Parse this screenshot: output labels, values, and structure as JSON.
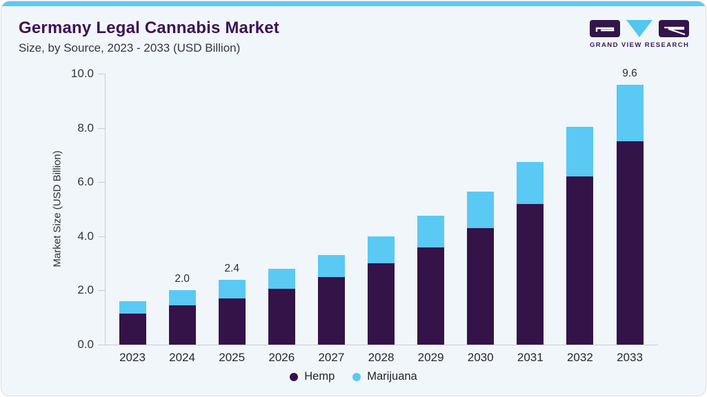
{
  "header": {
    "title": "Germany Legal Cannabis Market",
    "subtitle": "Size, by Source, 2023 - 2033 (USD Billion)"
  },
  "logo": {
    "brand": "GRAND VIEW RESEARCH"
  },
  "colors": {
    "hemp": "#331348",
    "marijuana": "#5ac9f3",
    "accent_bar": "#5bc9f5",
    "logo_purple": "#32164a",
    "logo_blue": "#53c6f0",
    "title_text": "#3e1156",
    "axis_line": "#c6ccd3",
    "card_bg": "#f1f6fa"
  },
  "chart_data": {
    "type": "bar",
    "stacked": true,
    "title": "Germany Legal Cannabis Market Size, by Source, 2023 - 2033 (USD Billion)",
    "xlabel": "",
    "ylabel": "Market Size (USD Billion)",
    "categories": [
      "2023",
      "2024",
      "2025",
      "2026",
      "2027",
      "2028",
      "2029",
      "2030",
      "2031",
      "2032",
      "2033"
    ],
    "series": [
      {
        "name": "Hemp",
        "color": "#331348",
        "values": [
          1.15,
          1.45,
          1.7,
          2.05,
          2.5,
          3.0,
          3.6,
          4.3,
          5.2,
          6.2,
          7.5
        ]
      },
      {
        "name": "Marijuana",
        "color": "#5ac9f3",
        "values": [
          0.45,
          0.55,
          0.7,
          0.75,
          0.8,
          1.0,
          1.15,
          1.35,
          1.55,
          1.85,
          2.1
        ]
      }
    ],
    "stack_totals": [
      1.6,
      2.0,
      2.4,
      2.8,
      3.3,
      4.0,
      4.75,
      5.65,
      6.75,
      8.05,
      9.6
    ],
    "bar_total_labels": [
      "",
      "2.0",
      "2.4",
      "",
      "",
      "",
      "",
      "",
      "",
      "",
      "9.6"
    ],
    "yticks": [
      0,
      2,
      4,
      6,
      8,
      10
    ],
    "ytick_labels": [
      "0.0",
      "2.0",
      "4.0",
      "6.0",
      "8.0",
      "10.0"
    ],
    "ylim": [
      0,
      10
    ],
    "grid": false,
    "legend_position": "bottom"
  }
}
